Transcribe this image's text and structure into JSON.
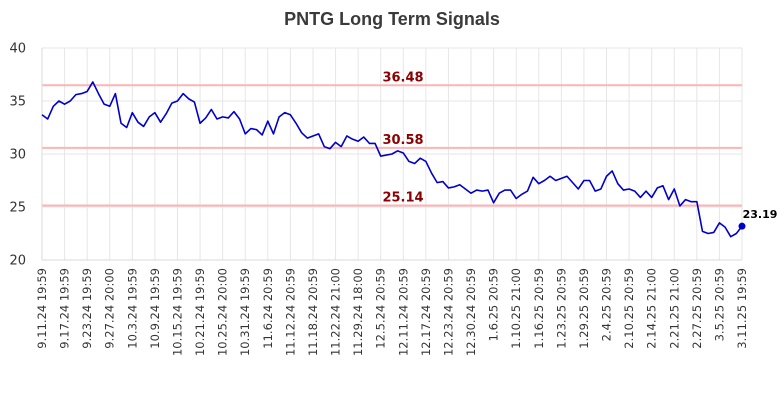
{
  "chart_data": {
    "type": "line",
    "title": "PNTG Long Term Signals",
    "xlabel": "",
    "ylabel": "",
    "ylim": [
      20,
      40
    ],
    "yticks": [
      20,
      25,
      30,
      35,
      40
    ],
    "grid": true,
    "line_color": "#0000cc",
    "signal_color": "#8b0000",
    "signal_line_color": "#ffb3b3",
    "x_tick_labels": [
      "9.11.24 19:59",
      "9.17.24 19:59",
      "9.23.24 19:59",
      "9.27.24 20:00",
      "10.3.24 19:59",
      "10.9.24 19:59",
      "10.15.24 19:59",
      "10.21.24 19:59",
      "10.25.24 20:00",
      "10.31.24 19:59",
      "11.6.24 20:59",
      "11.12.24 20:59",
      "11.18.24 20:59",
      "11.22.24 21:00",
      "11.29.24 18:00",
      "12.5.24 20:59",
      "12.11.24 20:59",
      "12.17.24 20:59",
      "12.23.24 20:59",
      "12.30.24 20:59",
      "1.6.25 20:59",
      "1.10.25 21:00",
      "1.16.25 20:59",
      "1.23.25 20:59",
      "1.29.25 20:59",
      "2.4.25 20:59",
      "2.10.25 20:59",
      "2.14.25 21:00",
      "2.21.25 21:00",
      "2.27.25 20:59",
      "3.5.25 20:59",
      "3.11.25 19:59"
    ],
    "signals": [
      {
        "label": "36.48",
        "value": 36.48
      },
      {
        "label": "30.58",
        "value": 30.58
      },
      {
        "label": "25.14",
        "value": 25.14
      }
    ],
    "last_value_label": "23.19",
    "series": [
      {
        "values": [
          33.7,
          33.3,
          34.5,
          35.0,
          34.7,
          35.0,
          35.6,
          35.7,
          35.9,
          36.8,
          35.7,
          34.7,
          34.5,
          35.7,
          32.9,
          32.5,
          33.9,
          33.0,
          32.6,
          33.5,
          33.9,
          33.0,
          33.8,
          34.8,
          35.0,
          35.7,
          35.2,
          34.9,
          32.9,
          33.4,
          34.2,
          33.3,
          33.5,
          33.4,
          34.0,
          33.3,
          31.9,
          32.4,
          32.3,
          31.8,
          33.1,
          31.9,
          33.5,
          33.9,
          33.7,
          32.9,
          32.0,
          31.5,
          31.7,
          31.9,
          30.7,
          30.5,
          31.1,
          30.7,
          31.7,
          31.4,
          31.2,
          31.6,
          31.0,
          31.0,
          29.8,
          29.9,
          30.0,
          30.3,
          30.1,
          29.3,
          29.1,
          29.6,
          29.3,
          28.2,
          27.3,
          27.4,
          26.8,
          26.9,
          27.1,
          26.7,
          26.3,
          26.6,
          26.5,
          26.6,
          25.4,
          26.3,
          26.6,
          26.6,
          25.8,
          26.2,
          26.5,
          27.8,
          27.2,
          27.5,
          27.9,
          27.5,
          27.7,
          27.9,
          27.3,
          26.7,
          27.5,
          27.5,
          26.5,
          26.7,
          27.9,
          28.4,
          27.2,
          26.6,
          26.7,
          26.5,
          25.9,
          26.5,
          25.9,
          26.8,
          27.0,
          25.7,
          26.7,
          25.1,
          25.7,
          25.5,
          25.5,
          22.7,
          22.5,
          22.6,
          23.5,
          23.1,
          22.2,
          22.5,
          23.19
        ]
      }
    ]
  }
}
